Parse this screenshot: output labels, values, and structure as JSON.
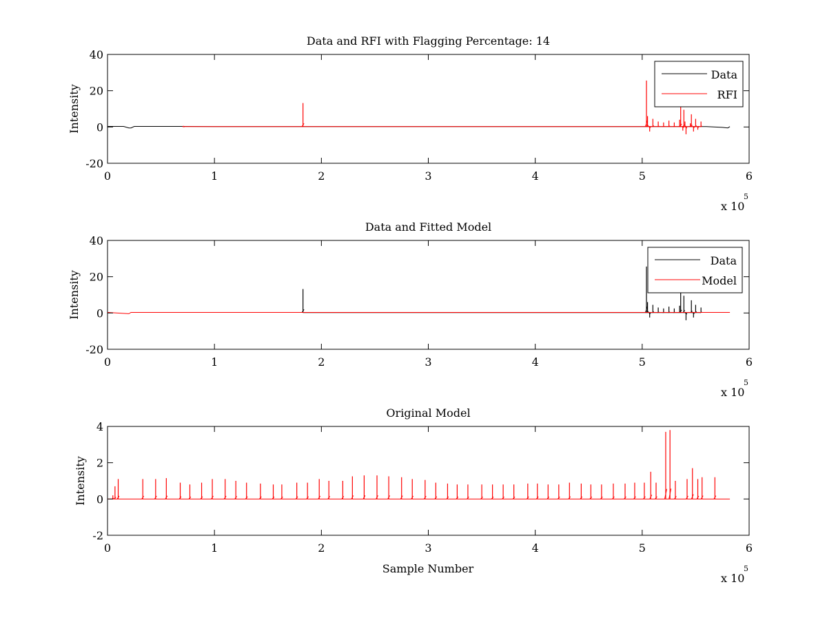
{
  "chart_data": [
    {
      "type": "line",
      "title": "Data and RFI with Flagging Percentage: 14",
      "xlabel": "",
      "ylabel": "Intensity",
      "xlim": [
        0,
        600000
      ],
      "ylim": [
        -20,
        40
      ],
      "xticks": [
        "0",
        "1",
        "2",
        "3",
        "4",
        "5",
        "6"
      ],
      "yticks": [
        "-20",
        "0",
        "20",
        "40"
      ],
      "x_exponent": {
        "base": "x 10",
        "power": "5"
      },
      "legend": {
        "position": "top-right",
        "entries": [
          "Data",
          "RFI"
        ]
      },
      "grid": false,
      "series": [
        {
          "name": "Data",
          "color": "#000000",
          "x": [
            0,
            15000,
            20000,
            22000,
            25000,
            70000,
            100000,
            182000,
            183000,
            184000,
            300000,
            400000,
            500000,
            504000,
            540000,
            560000,
            575000,
            580000,
            582000
          ],
          "y": [
            0.3,
            0.3,
            -0.5,
            -0.5,
            0.3,
            0.3,
            0.2,
            0.2,
            0.2,
            0.2,
            0.2,
            0.2,
            0.2,
            0.2,
            0.2,
            0.2,
            -0.2,
            -0.5,
            0.2
          ]
        },
        {
          "name": "RFI",
          "color": "#ff0000",
          "spikes": [
            [
              71000,
              0.6
            ],
            [
              182800,
              13.2
            ],
            [
              504000,
              25.6
            ],
            [
              505000,
              6.0
            ],
            [
              507000,
              -2.5
            ],
            [
              510000,
              4.5
            ],
            [
              515000,
              3.0
            ],
            [
              520000,
              2.5
            ],
            [
              525000,
              3.5
            ],
            [
              530000,
              2.5
            ],
            [
              535000,
              4.0
            ],
            [
              538000,
              -2.0
            ],
            [
              540000,
              3.0
            ],
            [
              545000,
              2.0
            ],
            [
              550000,
              4.5
            ],
            [
              552000,
              -1.5
            ],
            [
              536000,
              11.0
            ],
            [
              539000,
              9.5
            ],
            [
              541000,
              -4.0
            ],
            [
              546000,
              7.0
            ],
            [
              548000,
              -2.5
            ],
            [
              555000,
              3.0
            ]
          ]
        }
      ]
    },
    {
      "type": "line",
      "title": "Data and Fitted Model",
      "xlabel": "",
      "ylabel": "Intensity",
      "xlim": [
        0,
        600000
      ],
      "ylim": [
        -20,
        40
      ],
      "xticks": [
        "0",
        "1",
        "2",
        "3",
        "4",
        "5",
        "6"
      ],
      "yticks": [
        "-20",
        "0",
        "20",
        "40"
      ],
      "x_exponent": {
        "base": "x 10",
        "power": "5"
      },
      "legend": {
        "position": "top-right",
        "entries": [
          "Data",
          "Model"
        ]
      },
      "grid": false,
      "series": [
        {
          "name": "Data",
          "color": "#000000",
          "spikes": [
            [
              182800,
              13.2
            ],
            [
              504000,
              25.6
            ],
            [
              505000,
              6.0
            ],
            [
              507000,
              -2.5
            ],
            [
              510000,
              4.5
            ],
            [
              515000,
              3.0
            ],
            [
              520000,
              2.5
            ],
            [
              525000,
              3.5
            ],
            [
              530000,
              2.5
            ],
            [
              535000,
              4.0
            ],
            [
              536000,
              11.0
            ],
            [
              539000,
              9.5
            ],
            [
              541000,
              -4.0
            ],
            [
              546000,
              7.0
            ],
            [
              548000,
              -2.5
            ],
            [
              550000,
              4.5
            ],
            [
              555000,
              3.0
            ]
          ]
        },
        {
          "name": "Model",
          "color": "#ff0000",
          "x": [
            0,
            20000,
            22000,
            25000,
            582000
          ],
          "y": [
            0.3,
            -0.4,
            0.3,
            0.3,
            0.3
          ]
        }
      ]
    },
    {
      "type": "line",
      "title": "Original Model",
      "xlabel": "Sample Number",
      "ylabel": "Intensity",
      "xlim": [
        0,
        600000
      ],
      "ylim": [
        -2,
        4
      ],
      "xticks": [
        "0",
        "1",
        "2",
        "3",
        "4",
        "5",
        "6"
      ],
      "yticks": [
        "-2",
        "0",
        "2",
        "4"
      ],
      "x_exponent": {
        "base": "x 10",
        "power": "5"
      },
      "grid": false,
      "series": [
        {
          "color": "#ff0000",
          "baseline": 0,
          "x_end": 582000,
          "spikes": [
            [
              5000,
              0.2
            ],
            [
              7000,
              0.7
            ],
            [
              10000,
              1.1
            ],
            [
              33000,
              1.1
            ],
            [
              45000,
              1.1
            ],
            [
              55000,
              1.15
            ],
            [
              68000,
              0.9
            ],
            [
              77000,
              0.8
            ],
            [
              88000,
              0.9
            ],
            [
              98000,
              1.1
            ],
            [
              110000,
              1.1
            ],
            [
              120000,
              1.0
            ],
            [
              130000,
              0.9
            ],
            [
              143000,
              0.85
            ],
            [
              155000,
              0.8
            ],
            [
              163000,
              0.8
            ],
            [
              177000,
              0.9
            ],
            [
              187000,
              0.9
            ],
            [
              198000,
              1.1
            ],
            [
              207000,
              1.0
            ],
            [
              220000,
              1.0
            ],
            [
              229000,
              1.25
            ],
            [
              240000,
              1.3
            ],
            [
              252000,
              1.3
            ],
            [
              263000,
              1.25
            ],
            [
              275000,
              1.2
            ],
            [
              285000,
              1.1
            ],
            [
              297000,
              1.05
            ],
            [
              307000,
              0.9
            ],
            [
              318000,
              0.85
            ],
            [
              327000,
              0.8
            ],
            [
              337000,
              0.8
            ],
            [
              350000,
              0.8
            ],
            [
              360000,
              0.8
            ],
            [
              370000,
              0.8
            ],
            [
              380000,
              0.8
            ],
            [
              393000,
              0.85
            ],
            [
              402000,
              0.85
            ],
            [
              412000,
              0.8
            ],
            [
              422000,
              0.8
            ],
            [
              432000,
              0.9
            ],
            [
              443000,
              0.85
            ],
            [
              452000,
              0.8
            ],
            [
              462000,
              0.8
            ],
            [
              473000,
              0.85
            ],
            [
              484000,
              0.85
            ],
            [
              493000,
              0.9
            ],
            [
              502000,
              0.9
            ],
            [
              508000,
              1.5
            ],
            [
              513000,
              0.9
            ],
            [
              522000,
              3.7
            ],
            [
              526000,
              3.8
            ],
            [
              531000,
              1.0
            ],
            [
              542000,
              1.1
            ],
            [
              547000,
              1.7
            ],
            [
              552000,
              1.1
            ],
            [
              556000,
              1.2
            ],
            [
              568000,
              1.2
            ]
          ]
        }
      ]
    }
  ]
}
